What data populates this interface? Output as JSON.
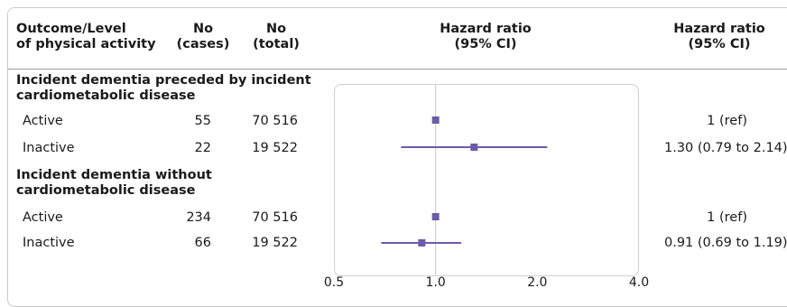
{
  "header": {
    "col_outcome_line1": "Outcome/Level",
    "col_outcome_line2": "of physical activity",
    "col_cases_line1": "No",
    "col_cases_line2": "(cases)",
    "col_total_line1": "No",
    "col_total_line2": "(total)",
    "col_plot_line1": "Hazard ratio",
    "col_plot_line2": "(95% CI)",
    "col_hr_line1": "Hazard ratio",
    "col_hr_line2": "(95% CI)"
  },
  "groups": [
    {
      "title_line1": "Incident dementia preceded by incident",
      "title_line2": "cardiometabolic disease",
      "rows": [
        {
          "level": "Active",
          "cases": "55",
          "total": "70 516",
          "hr_text": "1 (ref)"
        },
        {
          "level": "Inactive",
          "cases": "22",
          "total": "19 522",
          "hr_text": "1.30 (0.79 to 2.14)"
        }
      ]
    },
    {
      "title_line1": "Incident dementia without",
      "title_line2": "cardiometabolic disease",
      "rows": [
        {
          "level": "Active",
          "cases": "234",
          "total": "70 516",
          "hr_text": "1 (ref)"
        },
        {
          "level": "Inactive",
          "cases": "66",
          "total": "19 522",
          "hr_text": "0.91 (0.69 to 1.19)"
        }
      ]
    }
  ],
  "chart_data": {
    "type": "forest",
    "x_scale": "log",
    "xlim": [
      0.5,
      4.0
    ],
    "reference_line": 1.0,
    "x_ticks": [
      "0.5",
      "1.0",
      "2.0",
      "4.0"
    ],
    "x_tick_values": [
      0.5,
      1.0,
      2.0,
      4.0
    ],
    "points": [
      {
        "group": "Incident dementia preceded by incident cardiometabolic disease",
        "level": "Active",
        "hr": 1.0,
        "lo": null,
        "hi": null
      },
      {
        "group": "Incident dementia preceded by incident cardiometabolic disease",
        "level": "Inactive",
        "hr": 1.3,
        "lo": 0.79,
        "hi": 2.14
      },
      {
        "group": "Incident dementia without cardiometabolic disease",
        "level": "Active",
        "hr": 1.0,
        "lo": null,
        "hi": null
      },
      {
        "group": "Incident dementia without cardiometabolic disease",
        "level": "Inactive",
        "hr": 0.91,
        "lo": 0.69,
        "hi": 1.19
      }
    ],
    "colors": {
      "marker": "#6b5ba8",
      "ref_line": "#c8c8c8",
      "box": "#cfcfcf"
    }
  }
}
